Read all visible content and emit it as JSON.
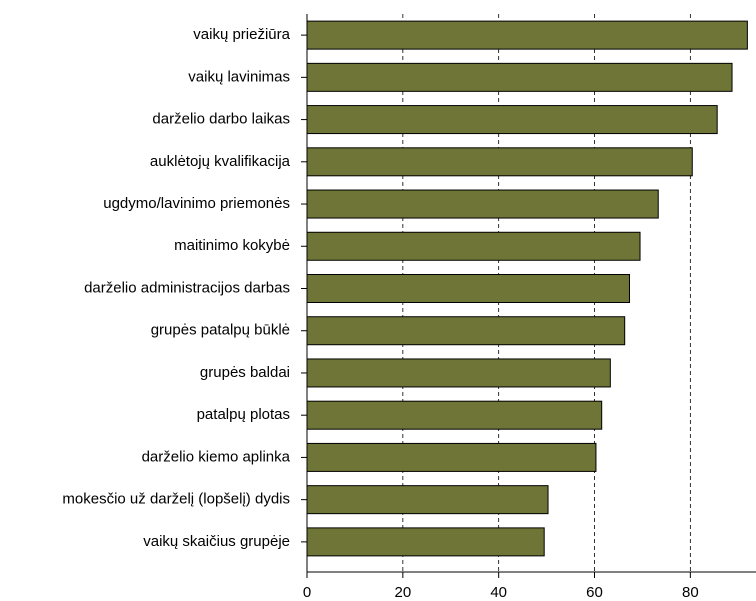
{
  "chart_data": {
    "type": "barh",
    "categories": [
      "vaikų priežiūra",
      "vaikų lavinimas",
      "darželio darbo laikas",
      "auklėtojų kvalifikacija",
      "ugdymo/lavinimo priemonės",
      "maitinimo kokybė",
      "darželio administracijos darbas",
      "grupės patalpų būklė",
      "grupės baldai",
      "patalpų plotas",
      "darželio kiemo aplinka",
      "mokesčio už darželį (lopšelį) dydis",
      "vaikų skaičius grupėje"
    ],
    "values": [
      91.9,
      88.7,
      85.6,
      80.4,
      73.3,
      69.5,
      67.3,
      66.3,
      63.3,
      61.5,
      60.3,
      50.3,
      49.5
    ],
    "color": "#6e7536",
    "xlim": [
      0,
      93.7
    ],
    "xticks": [
      0,
      20,
      40,
      60,
      80
    ],
    "grid": true
  }
}
